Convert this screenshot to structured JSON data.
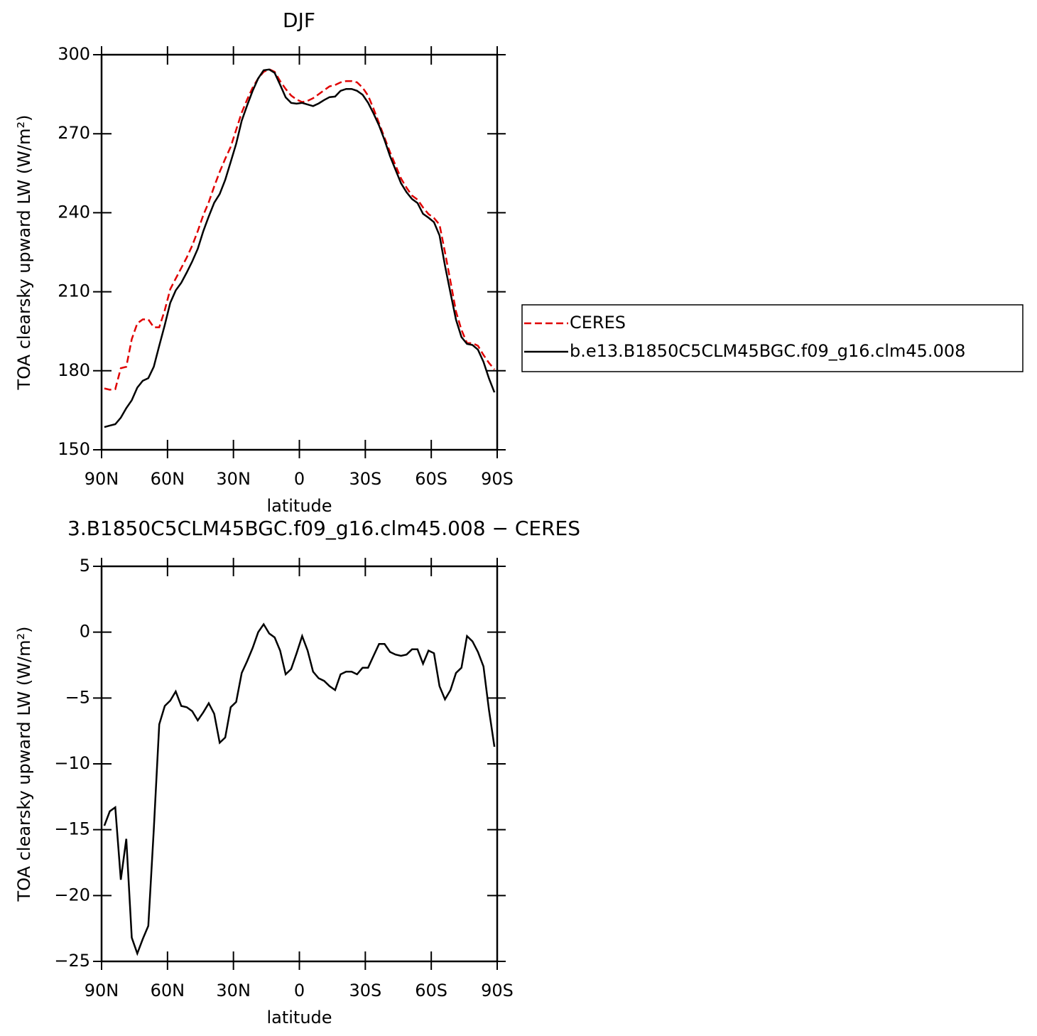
{
  "chart_data": [
    {
      "type": "line",
      "title": "DJF",
      "xlabel": "latitude",
      "ylabel": "TOA clearsky upward LW (W/m²)",
      "x": [
        88.75,
        86.25,
        83.75,
        81.25,
        78.75,
        76.25,
        73.75,
        71.25,
        68.75,
        66.25,
        63.75,
        61.25,
        58.75,
        56.25,
        53.75,
        51.25,
        48.75,
        46.25,
        43.75,
        41.25,
        38.75,
        36.25,
        33.75,
        31.25,
        28.75,
        26.25,
        23.75,
        21.25,
        18.75,
        16.25,
        13.75,
        11.25,
        8.75,
        6.25,
        3.75,
        1.25,
        -1.25,
        -3.75,
        -6.25,
        -8.75,
        -11.25,
        -13.75,
        -16.25,
        -18.75,
        -21.25,
        -23.75,
        -26.25,
        -28.75,
        -31.25,
        -33.75,
        -36.25,
        -38.75,
        -41.25,
        -43.75,
        -46.25,
        -48.75,
        -51.25,
        -53.75,
        -56.25,
        -58.75,
        -61.25,
        -63.75,
        -66.25,
        -68.75,
        -71.25,
        -73.75,
        -76.25,
        -78.75,
        -81.25,
        -83.75,
        -86.25,
        -88.75
      ],
      "series": [
        {
          "name": "CERES",
          "color": "#e00000",
          "style": "dashed",
          "values": [
            173.3,
            172.8,
            173,
            181,
            181.5,
            192,
            198,
            199.5,
            199.5,
            196.5,
            196.5,
            203,
            211,
            215,
            219,
            223,
            227.5,
            233,
            239,
            244,
            250,
            255.5,
            260.5,
            265,
            271.5,
            278,
            283,
            287.5,
            291,
            293.5,
            294.5,
            293.5,
            290,
            287,
            284.5,
            283,
            282,
            282.5,
            283.5,
            285,
            286.5,
            288,
            288.5,
            289.5,
            290,
            290,
            289.5,
            287.5,
            284.5,
            279.5,
            274,
            268.5,
            263,
            258,
            253,
            249.5,
            246.5,
            245,
            242,
            239.5,
            238,
            235.5,
            225,
            214,
            202.5,
            195.5,
            190.5,
            190.5,
            189.5,
            186,
            183,
            180.5
          ]
        },
        {
          "name": "b.e13.B1850C5CLM45BGC.f09_g16.clm45.008",
          "color": "#000000",
          "style": "solid",
          "values": [
            158.6,
            159.2,
            159.7,
            162.2,
            165.8,
            168.8,
            173.6,
            176.2,
            177.2,
            181.5,
            189.5,
            197.4,
            205.8,
            210.5,
            213.4,
            217.3,
            221.5,
            226.3,
            232.9,
            238.6,
            243.8,
            247.1,
            252.5,
            259.3,
            266.2,
            274.9,
            280.8,
            286.3,
            291,
            294.1,
            294.4,
            293.1,
            288.6,
            283.8,
            281.7,
            281.4,
            281.7,
            281.1,
            280.5,
            281.5,
            282.8,
            283.9,
            284.1,
            286.3,
            287,
            287,
            286.3,
            284.8,
            281.8,
            277.7,
            273.1,
            267.6,
            261.5,
            256.3,
            251.2,
            247.8,
            245.2,
            243.7,
            239.6,
            238.1,
            236.4,
            231.4,
            219.9,
            209.6,
            199.4,
            192.8,
            190.2,
            189.8,
            188,
            183.4,
            177.1,
            171.8
          ]
        }
      ],
      "xlim": [
        90,
        -90
      ],
      "xticks": [
        {
          "value": 90,
          "label": "90N"
        },
        {
          "value": 60,
          "label": "60N"
        },
        {
          "value": 30,
          "label": "30N"
        },
        0,
        {
          "value": -30,
          "label": "30S"
        },
        {
          "value": -60,
          "label": "60S"
        },
        {
          "value": -90,
          "label": "90S"
        }
      ],
      "ylim": [
        150,
        300
      ],
      "yticks": [
        150,
        180,
        210,
        240,
        270,
        300
      ],
      "legend": "right"
    },
    {
      "type": "line",
      "title": "3.B1850C5CLM45BGC.f09_g16.clm45.008 − CERES",
      "xlabel": "latitude",
      "ylabel": "TOA clearsky upward LW (W/m²)",
      "x": [
        88.75,
        86.25,
        83.75,
        81.25,
        78.75,
        76.25,
        73.75,
        71.25,
        68.75,
        66.25,
        63.75,
        61.25,
        58.75,
        56.25,
        53.75,
        51.25,
        48.75,
        46.25,
        43.75,
        41.25,
        38.75,
        36.25,
        33.75,
        31.25,
        28.75,
        26.25,
        23.75,
        21.25,
        18.75,
        16.25,
        13.75,
        11.25,
        8.75,
        6.25,
        3.75,
        1.25,
        -1.25,
        -3.75,
        -6.25,
        -8.75,
        -11.25,
        -13.75,
        -16.25,
        -18.75,
        -21.25,
        -23.75,
        -26.25,
        -28.75,
        -31.25,
        -33.75,
        -36.25,
        -38.75,
        -41.25,
        -43.75,
        -46.25,
        -48.75,
        -51.25,
        -53.75,
        -56.25,
        -58.75,
        -61.25,
        -63.75,
        -66.25,
        -68.75,
        -71.25,
        -73.75,
        -76.25,
        -78.75,
        -81.25,
        -83.75,
        -86.25,
        -88.75
      ],
      "color": "#000000",
      "values": [
        -14.7,
        -13.6,
        -13.3,
        -18.8,
        -15.7,
        -23.2,
        -24.4,
        -23.3,
        -22.3,
        -15,
        -7,
        -5.6,
        -5.2,
        -4.5,
        -5.6,
        -5.7,
        -6,
        -6.7,
        -6.1,
        -5.4,
        -6.2,
        -8.4,
        -8,
        -5.7,
        -5.3,
        -3.1,
        -2.2,
        -1.2,
        0,
        0.6,
        -0.1,
        -0.4,
        -1.4,
        -3.2,
        -2.8,
        -1.6,
        -0.3,
        -1.4,
        -3,
        -3.5,
        -3.7,
        -4.1,
        -4.4,
        -3.2,
        -3,
        -3,
        -3.2,
        -2.7,
        -2.7,
        -1.8,
        -0.9,
        -0.9,
        -1.5,
        -1.7,
        -1.8,
        -1.7,
        -1.3,
        -1.3,
        -2.4,
        -1.4,
        -1.6,
        -4.1,
        -5.1,
        -4.4,
        -3.1,
        -2.7,
        -0.3,
        -0.7,
        -1.5,
        -2.6,
        -5.9,
        -8.7
      ],
      "xlim": [
        90,
        -90
      ],
      "xticks": [
        {
          "value": 90,
          "label": "90N"
        },
        {
          "value": 60,
          "label": "60N"
        },
        {
          "value": 30,
          "label": "30N"
        },
        0,
        {
          "value": -30,
          "label": "30S"
        },
        {
          "value": -60,
          "label": "60S"
        },
        {
          "value": -90,
          "label": "90S"
        }
      ],
      "ylim": [
        -25,
        5
      ],
      "yticks": [
        {
          "value": -25,
          "label": "−25"
        },
        {
          "value": -20,
          "label": "−20"
        },
        {
          "value": -15,
          "label": "−15"
        },
        {
          "value": -10,
          "label": "−10"
        },
        {
          "value": -5,
          "label": "−5"
        },
        0,
        5
      ]
    }
  ]
}
